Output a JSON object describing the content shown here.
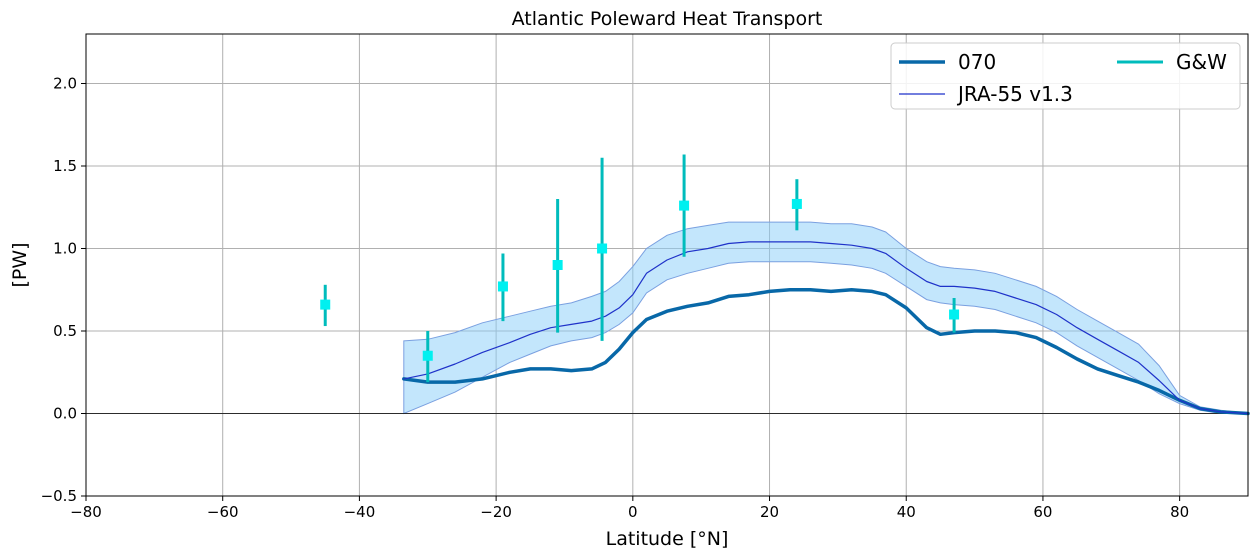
{
  "chart_data": {
    "type": "line",
    "title": "Atlantic Poleward Heat Transport",
    "xlabel": "Latitude [°N]",
    "ylabel": "[PW]",
    "xlim": [
      -80,
      90
    ],
    "ylim": [
      -0.5,
      2.3
    ],
    "xticks": [
      -80,
      -60,
      -40,
      -20,
      0,
      20,
      40,
      60,
      80
    ],
    "yticks": [
      -0.5,
      0.0,
      0.5,
      1.0,
      1.5,
      2.0
    ],
    "xtick_labels": [
      "−80",
      "−60",
      "−40",
      "−20",
      "0",
      "20",
      "40",
      "60",
      "80"
    ],
    "ytick_labels": [
      "−0.5",
      "0.0",
      "0.5",
      "1.0",
      "1.5",
      "2.0"
    ],
    "grid": true,
    "zero_line": true,
    "legend_position": "top-right",
    "legend_columns": 2,
    "series": [
      {
        "name": "070",
        "kind": "line",
        "color": "#0868a8",
        "x": [
          -33.5,
          -30,
          -26,
          -22,
          -18,
          -15,
          -12,
          -9,
          -6,
          -4,
          -2,
          0,
          2,
          5,
          8,
          11,
          14,
          17,
          20,
          23,
          26,
          29,
          32,
          35,
          37,
          40,
          43,
          45,
          47,
          50,
          53,
          56,
          59,
          62,
          65,
          68,
          71,
          74,
          77,
          80,
          83,
          86,
          90
        ],
        "y": [
          0.21,
          0.19,
          0.19,
          0.21,
          0.25,
          0.27,
          0.27,
          0.26,
          0.27,
          0.31,
          0.39,
          0.49,
          0.57,
          0.62,
          0.65,
          0.67,
          0.71,
          0.72,
          0.74,
          0.75,
          0.75,
          0.74,
          0.75,
          0.74,
          0.72,
          0.64,
          0.52,
          0.48,
          0.49,
          0.5,
          0.5,
          0.49,
          0.46,
          0.4,
          0.33,
          0.27,
          0.23,
          0.19,
          0.14,
          0.08,
          0.03,
          0.01,
          0.0
        ]
      },
      {
        "name": "JRA-55 v1.3",
        "kind": "line",
        "color": "#1f32c9",
        "x": [
          -33.5,
          -30,
          -26,
          -22,
          -18,
          -15,
          -12,
          -9,
          -6,
          -4,
          -2,
          0,
          2,
          5,
          8,
          11,
          14,
          17,
          20,
          23,
          26,
          29,
          32,
          35,
          37,
          40,
          43,
          45,
          47,
          50,
          53,
          56,
          59,
          62,
          65,
          68,
          71,
          74,
          77,
          80,
          83,
          86,
          90
        ],
        "y": [
          0.21,
          0.24,
          0.3,
          0.37,
          0.43,
          0.48,
          0.52,
          0.54,
          0.56,
          0.59,
          0.64,
          0.72,
          0.85,
          0.93,
          0.98,
          1.0,
          1.03,
          1.04,
          1.04,
          1.04,
          1.04,
          1.03,
          1.02,
          1.0,
          0.97,
          0.88,
          0.8,
          0.77,
          0.77,
          0.76,
          0.74,
          0.7,
          0.66,
          0.6,
          0.52,
          0.45,
          0.38,
          0.31,
          0.2,
          0.08,
          0.03,
          0.01,
          0.0
        ]
      },
      {
        "name": "G&W",
        "kind": "errorbar",
        "color": "#00bcbc",
        "marker_color": "#00f0f0",
        "x": [
          -45,
          -30,
          -19,
          -11,
          -4.5,
          7.5,
          24,
          47
        ],
        "y": [
          0.66,
          0.35,
          0.77,
          0.9,
          1.0,
          1.26,
          1.27,
          0.6
        ],
        "yerr_low": [
          0.53,
          0.19,
          0.56,
          0.49,
          0.44,
          0.95,
          1.11,
          0.49
        ],
        "yerr_high": [
          0.78,
          0.5,
          0.97,
          1.3,
          1.55,
          1.57,
          1.42,
          0.7
        ]
      }
    ],
    "band": {
      "series": "JRA-55 v1.3",
      "color": "#87cefa",
      "edge_color": "#7aa0e0",
      "x": [
        -33.5,
        -30,
        -26,
        -22,
        -18,
        -15,
        -12,
        -9,
        -6,
        -4,
        -2,
        0,
        2,
        5,
        8,
        11,
        14,
        17,
        20,
        23,
        26,
        29,
        32,
        35,
        37,
        40,
        43,
        45,
        47,
        50,
        53,
        56,
        59,
        62,
        65,
        68,
        71,
        74,
        77,
        80,
        83,
        86,
        90
      ],
      "lower": [
        0.0,
        0.06,
        0.13,
        0.22,
        0.31,
        0.36,
        0.41,
        0.44,
        0.46,
        0.49,
        0.54,
        0.61,
        0.73,
        0.81,
        0.85,
        0.88,
        0.91,
        0.92,
        0.92,
        0.92,
        0.92,
        0.91,
        0.9,
        0.88,
        0.85,
        0.77,
        0.69,
        0.67,
        0.66,
        0.65,
        0.63,
        0.59,
        0.55,
        0.49,
        0.41,
        0.34,
        0.27,
        0.2,
        0.12,
        0.06,
        0.02,
        0.0,
        0.0
      ],
      "upper": [
        0.44,
        0.45,
        0.49,
        0.55,
        0.59,
        0.62,
        0.65,
        0.67,
        0.71,
        0.74,
        0.8,
        0.89,
        1.0,
        1.08,
        1.12,
        1.14,
        1.16,
        1.16,
        1.16,
        1.16,
        1.16,
        1.15,
        1.15,
        1.13,
        1.1,
        1.0,
        0.92,
        0.89,
        0.88,
        0.87,
        0.85,
        0.81,
        0.77,
        0.71,
        0.63,
        0.56,
        0.49,
        0.42,
        0.29,
        0.11,
        0.04,
        0.02,
        0.0
      ]
    }
  }
}
